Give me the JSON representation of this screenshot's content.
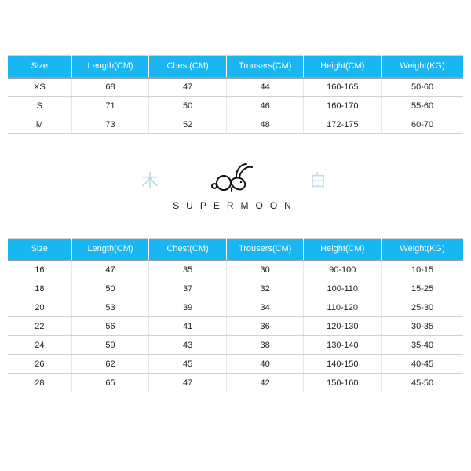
{
  "colors": {
    "header_bg": "#19b6f2",
    "header_text": "#ffffff",
    "border": "#c9ccd0",
    "decor": "#bcdce9"
  },
  "table1": {
    "columns": [
      "Size",
      "Length(CM)",
      "Chest(CM)",
      "Trousers(CM)",
      "Height(CM)",
      "Weight(KG)"
    ],
    "rows": [
      [
        "XS",
        "68",
        "47",
        "44",
        "160-165",
        "50-60"
      ],
      [
        "S",
        "71",
        "50",
        "46",
        "160-170",
        "55-60"
      ],
      [
        "M",
        "73",
        "52",
        "48",
        "172-175",
        "60-70"
      ]
    ],
    "col_widths_pct": [
      14,
      17,
      17,
      17,
      17,
      18
    ]
  },
  "brand": {
    "text": "SUPERMOON",
    "left_glyph": "木",
    "right_glyph": "白"
  },
  "table2": {
    "columns": [
      "Size",
      "Length(CM)",
      "Chest(CM)",
      "Trousers(CM)",
      "Height(CM)",
      "Weight(KG)"
    ],
    "rows": [
      [
        "16",
        "47",
        "35",
        "30",
        "90-100",
        "10-15"
      ],
      [
        "18",
        "50",
        "37",
        "32",
        "100-110",
        "15-25"
      ],
      [
        "20",
        "53",
        "39",
        "34",
        "110-120",
        "25-30"
      ],
      [
        "22",
        "56",
        "41",
        "36",
        "120-130",
        "30-35"
      ],
      [
        "24",
        "59",
        "43",
        "38",
        "130-140",
        "35-40"
      ],
      [
        "26",
        "62",
        "45",
        "40",
        "140-150",
        "40-45"
      ],
      [
        "28",
        "65",
        "47",
        "42",
        "150-160",
        "45-50"
      ]
    ],
    "col_widths_pct": [
      14,
      17,
      17,
      17,
      17,
      18
    ]
  }
}
